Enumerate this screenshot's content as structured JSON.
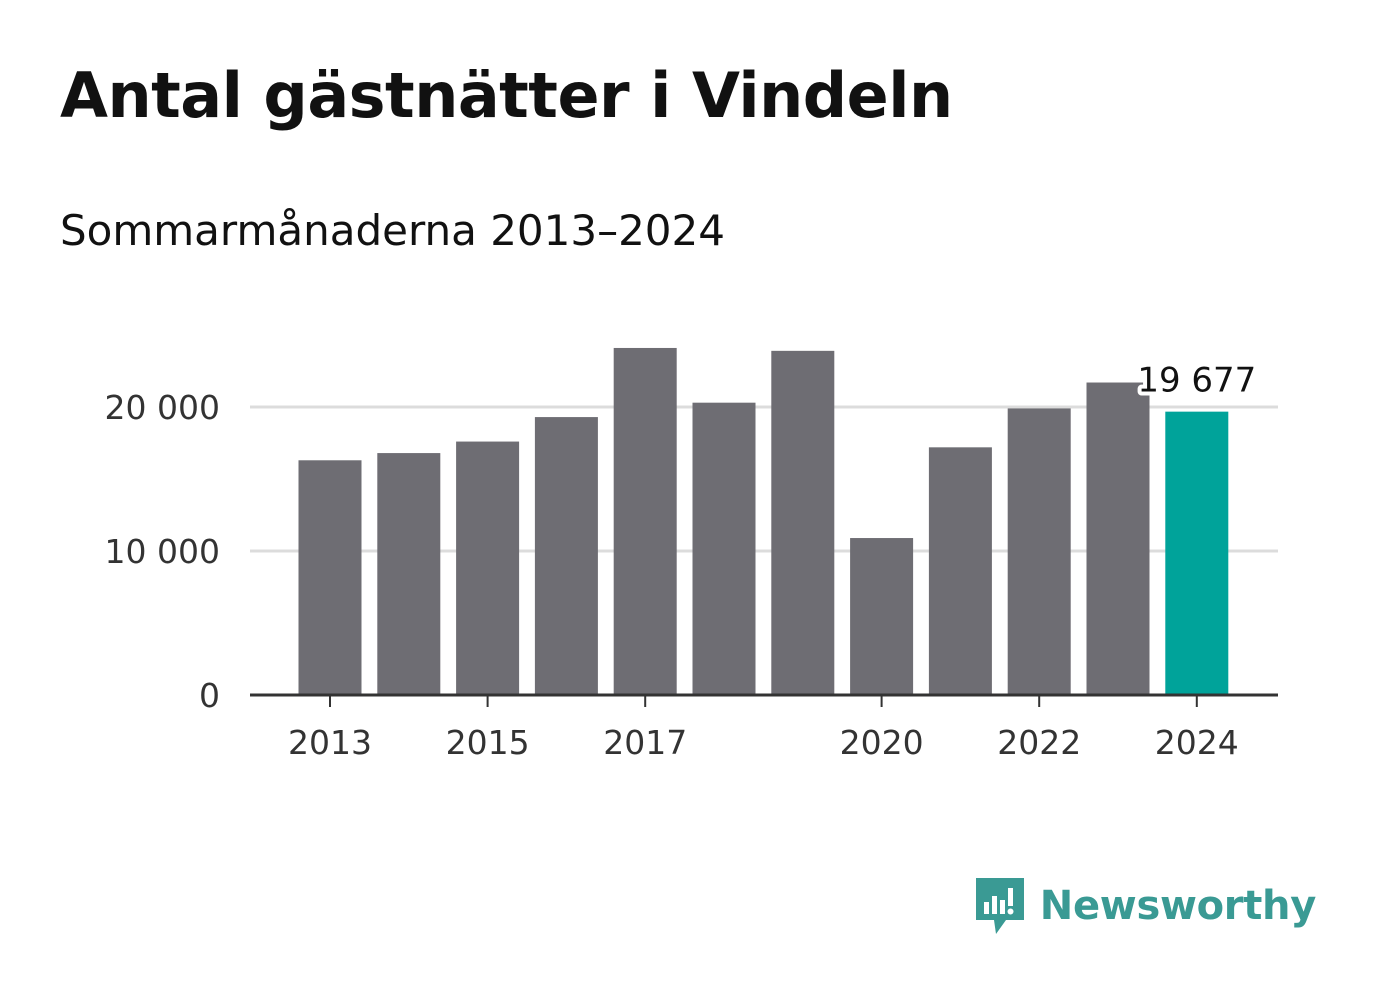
{
  "chart_data": {
    "type": "bar",
    "title": "Antal gästnätter i Vindeln",
    "subtitle": "Sommarmånaderna 2013–2024",
    "x": [
      2013,
      2014,
      2015,
      2016,
      2017,
      2018,
      2019,
      2020,
      2021,
      2022,
      2023,
      2024
    ],
    "values": [
      16300,
      16800,
      17600,
      19300,
      24100,
      20300,
      23900,
      10900,
      17200,
      19900,
      21700,
      19677
    ],
    "x_tick_labels": [
      "2013",
      "2015",
      "2017",
      "2020",
      "2022",
      "2024"
    ],
    "y_ticks": [
      0,
      10000,
      20000
    ],
    "y_tick_labels": [
      "0",
      "10 000",
      "20 000"
    ],
    "ylim": [
      0,
      26000
    ],
    "grid": "horizontal",
    "highlight": {
      "x": 2024,
      "label": "19 677"
    },
    "colors": {
      "bar": "#6e6d73",
      "highlight": "#00a39a",
      "grid": "#dcdcdc",
      "axis": "#333333"
    }
  },
  "brand": {
    "name": "Newsworthy",
    "color": "#3a9a94",
    "icon": "newsworthy-logo-icon"
  }
}
